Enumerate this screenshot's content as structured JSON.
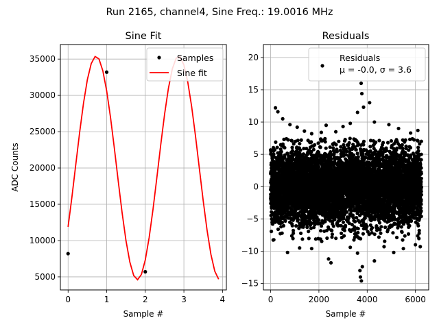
{
  "figure": {
    "title": "Run 2165, channel4, Sine Freq.: 19.0016 MHz"
  },
  "chart_data": [
    {
      "type": "line",
      "title": "Sine Fit",
      "xlabel": "Sample #",
      "ylabel": "ADC Counts",
      "xlim": [
        -0.2,
        4.1
      ],
      "ylim": [
        3200,
        37000
      ],
      "xticks": [
        0,
        1,
        2,
        3,
        4
      ],
      "yticks": [
        5000,
        10000,
        15000,
        20000,
        25000,
        30000,
        35000
      ],
      "grid": true,
      "legend_position": "upper-right",
      "series": [
        {
          "name": "Samples",
          "style": "points",
          "color": "#000000",
          "x": [
            0,
            1,
            2
          ],
          "y": [
            8200,
            33200,
            5700
          ]
        },
        {
          "name": "Sine fit",
          "style": "line",
          "color": "#ff0000",
          "model": {
            "offset": 20000,
            "amplitude": 15400,
            "period": 2.14,
            "phase": -0.555,
            "x_start": 0,
            "x_end": 3.9,
            "x_step": 0.1
          }
        }
      ]
    },
    {
      "type": "scatter",
      "title": "Residuals",
      "xlabel": "Sample #",
      "ylabel": "",
      "xlim": [
        -300,
        6550
      ],
      "ylim": [
        -16,
        22
      ],
      "xticks": [
        0,
        2000,
        4000,
        6000
      ],
      "yticks": [
        -15,
        -10,
        -5,
        0,
        5,
        10,
        15,
        20
      ],
      "grid": true,
      "legend_position": "upper-right",
      "series": [
        {
          "name": "Residuals",
          "legend_stats": "μ = -0.0, σ = 3.6",
          "color": "#000000",
          "n_points": 6250,
          "mean": 0.0,
          "sigma": 3.6,
          "outliers": [
            {
              "x": 200,
              "y": 12.2
            },
            {
              "x": 300,
              "y": 11.6
            },
            {
              "x": 500,
              "y": 10.5
            },
            {
              "x": 800,
              "y": 9.6
            },
            {
              "x": 1100,
              "y": 9.2
            },
            {
              "x": 1400,
              "y": 8.6
            },
            {
              "x": 1700,
              "y": 8.2
            },
            {
              "x": 2100,
              "y": 8.4
            },
            {
              "x": 2300,
              "y": 9.5
            },
            {
              "x": 2700,
              "y": 8.5
            },
            {
              "x": 3000,
              "y": 9.3
            },
            {
              "x": 3300,
              "y": 9.8
            },
            {
              "x": 3600,
              "y": 11.5
            },
            {
              "x": 3750,
              "y": 16.0
            },
            {
              "x": 3780,
              "y": 14.4
            },
            {
              "x": 3850,
              "y": 12.3
            },
            {
              "x": 4100,
              "y": 13.0
            },
            {
              "x": 4300,
              "y": 10.0
            },
            {
              "x": 4900,
              "y": 9.6
            },
            {
              "x": 5300,
              "y": 9.0
            },
            {
              "x": 5800,
              "y": 8.3
            },
            {
              "x": 6100,
              "y": 8.7
            },
            {
              "x": 700,
              "y": -10.2
            },
            {
              "x": 1200,
              "y": -9.5
            },
            {
              "x": 1700,
              "y": -9.6
            },
            {
              "x": 2400,
              "y": -11.2
            },
            {
              "x": 2500,
              "y": -11.8
            },
            {
              "x": 3300,
              "y": -9.4
            },
            {
              "x": 3600,
              "y": -10.3
            },
            {
              "x": 3700,
              "y": -13.0
            },
            {
              "x": 3720,
              "y": -14.0
            },
            {
              "x": 3760,
              "y": -14.6
            },
            {
              "x": 3800,
              "y": -12.4
            },
            {
              "x": 4300,
              "y": -11.5
            },
            {
              "x": 4700,
              "y": -9.3
            },
            {
              "x": 5100,
              "y": -10.2
            },
            {
              "x": 5500,
              "y": -9.6
            },
            {
              "x": 6000,
              "y": -9.0
            },
            {
              "x": 6200,
              "y": -9.3
            }
          ]
        }
      ]
    }
  ]
}
